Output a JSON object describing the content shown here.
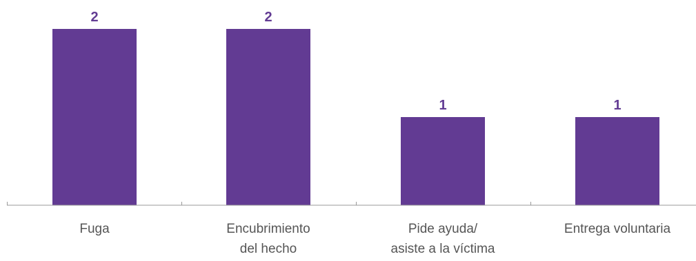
{
  "chart_data": {
    "type": "bar",
    "categories": [
      [
        "Fuga"
      ],
      [
        "Encubrimiento",
        "del hecho"
      ],
      [
        "Pide ayuda/",
        "asiste a la víctima"
      ],
      [
        "Entrega voluntaria"
      ]
    ],
    "values": [
      2,
      2,
      1,
      1
    ],
    "data_labels": [
      "2",
      "2",
      "1",
      "1"
    ],
    "title": "",
    "xlabel": "",
    "ylabel": "",
    "ylim": [
      0,
      2
    ],
    "grid": false,
    "legend": "none",
    "colors": {
      "bar": "#623B93",
      "data_label": "#623B93",
      "tick_label": "#555555",
      "axis": "#999999"
    }
  }
}
